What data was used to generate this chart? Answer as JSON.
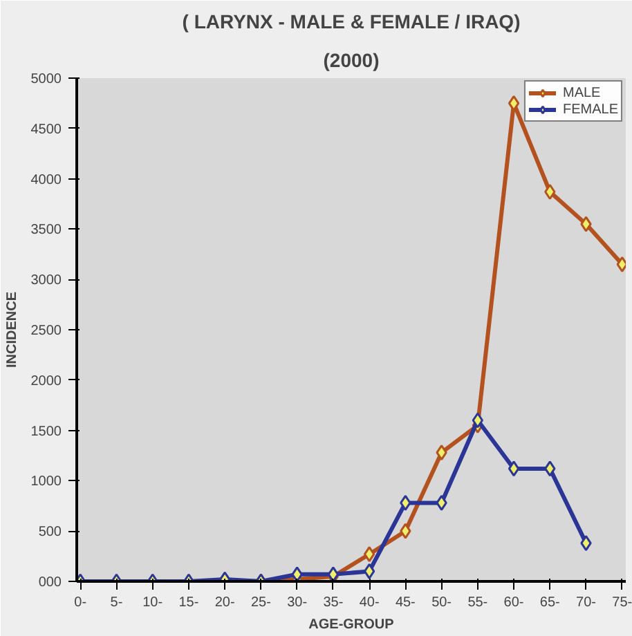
{
  "chart_data": {
    "type": "line",
    "title": "( LARYNX - MALE & FEMALE / IRAQ)",
    "subtitle": "(2000)",
    "xlabel": "AGE-GROUP",
    "ylabel": "INCIDENCE",
    "categories": [
      "0-",
      "5-",
      "10-",
      "15-",
      "20-",
      "25-",
      "30-",
      "35-",
      "40-",
      "45-",
      "50-",
      "55-",
      "60-",
      "65-",
      "70-",
      "75-"
    ],
    "series": [
      {
        "name": "MALE",
        "color": "#b4521f",
        "values": [
          null,
          null,
          null,
          null,
          10,
          0,
          20,
          50,
          270,
          500,
          1280,
          1550,
          4750,
          3870,
          3550,
          3150
        ]
      },
      {
        "name": "FEMALE",
        "color": "#2a3596",
        "values": [
          0,
          0,
          0,
          0,
          20,
          0,
          70,
          70,
          100,
          780,
          780,
          1600,
          1120,
          1120,
          380,
          null
        ]
      }
    ],
    "ylim": [
      0,
      5000
    ],
    "yticks": [
      {
        "value": 0,
        "label": "000"
      },
      500,
      1000,
      1500,
      2000,
      2500,
      3000,
      3500,
      4000,
      4500,
      5000
    ],
    "grid": false,
    "legend": "top right",
    "marker": "diamond",
    "line_style": "solid"
  }
}
